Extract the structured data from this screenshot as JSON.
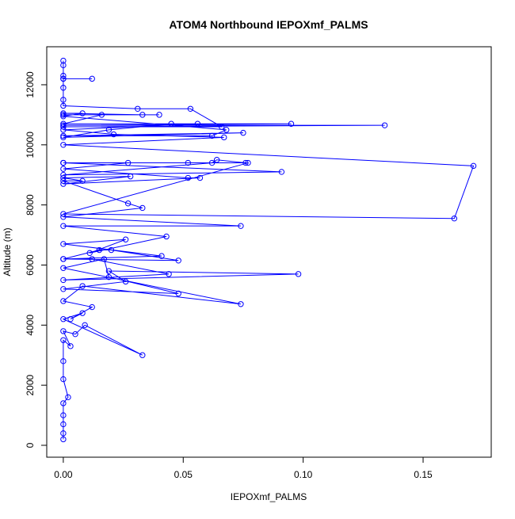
{
  "chart_data": {
    "type": "line",
    "title": "ATOM4 Northbound IEPOXmf_PALMS",
    "x_label": "IEPOXmf_PALMS",
    "y_label": "Altitude (m)",
    "color": "#0000ff",
    "grid": false,
    "xlim": [
      -0.0069,
      0.1784
    ],
    "ylim": [
      -396,
      13265
    ],
    "xticks": [
      {
        "value": 0,
        "label": "0.00"
      },
      {
        "value": 0.05,
        "label": "0.05"
      },
      {
        "value": 0.1,
        "label": "0.10"
      },
      {
        "value": 0.15,
        "label": "0.15"
      }
    ],
    "yticks": [
      0,
      2000,
      4000,
      6000,
      8000,
      10000,
      12000
    ],
    "x": [
      0,
      0,
      0,
      0,
      0.012,
      0,
      0,
      0,
      0,
      0.031,
      0.053,
      0.066,
      0,
      0.134,
      0,
      0.095,
      0,
      0.016,
      0.04,
      0,
      0.033,
      0,
      0.008,
      0,
      0.068,
      0.062,
      0,
      0.075,
      0,
      0.019,
      0.045,
      0.056,
      0,
      0.021,
      0.067,
      0,
      0.171,
      0.163,
      0,
      0.077,
      0,
      0.052,
      0,
      0.091,
      0,
      0.062,
      0.064,
      0.076,
      0,
      0.027,
      0,
      0.052,
      0.057,
      0,
      0.028,
      0,
      0.008,
      0,
      0.027,
      0.033,
      0,
      0.074,
      0,
      0.043,
      0.011,
      0.026,
      0,
      0.041,
      0,
      0.048,
      0.02,
      0.015,
      0,
      0.012,
      0.044,
      0,
      0.098,
      0.019,
      0.026,
      0,
      0.048,
      0.019,
      0.017,
      0,
      0.074,
      0.008,
      0,
      0.012,
      0.003,
      0.008,
      0,
      0.033,
      0.009,
      0.005,
      0,
      0.003,
      0,
      0,
      0,
      0.002,
      0,
      0,
      0,
      0,
      0
    ],
    "values": [
      12800,
      12650,
      12300,
      12200,
      12200,
      12200,
      11900,
      11500,
      11300,
      11200,
      11200,
      10600,
      10600,
      10650,
      10650,
      10700,
      10700,
      11000,
      11000,
      11000,
      11000,
      11050,
      11050,
      10950,
      10500,
      10300,
      10300,
      10400,
      10250,
      10500,
      10700,
      10700,
      10500,
      10350,
      10250,
      10000,
      9300,
      7550,
      7700,
      9400,
      9400,
      9400,
      9400,
      9100,
      9000,
      9400,
      9500,
      9400,
      9400,
      9400,
      9200,
      8900,
      8900,
      8700,
      8950,
      8900,
      8800,
      8800,
      8050,
      7900,
      7600,
      7300,
      7300,
      6950,
      6400,
      6850,
      6700,
      6300,
      6200,
      6150,
      6500,
      6500,
      6200,
      6200,
      5700,
      5500,
      5700,
      5800,
      5450,
      5200,
      5050,
      5600,
      6200,
      5900,
      4700,
      5300,
      4800,
      4600,
      4200,
      4400,
      4200,
      3000,
      4000,
      3700,
      3800,
      3300,
      3500,
      2800,
      2200,
      1600,
      1400,
      1000,
      700,
      400,
      200
    ]
  }
}
